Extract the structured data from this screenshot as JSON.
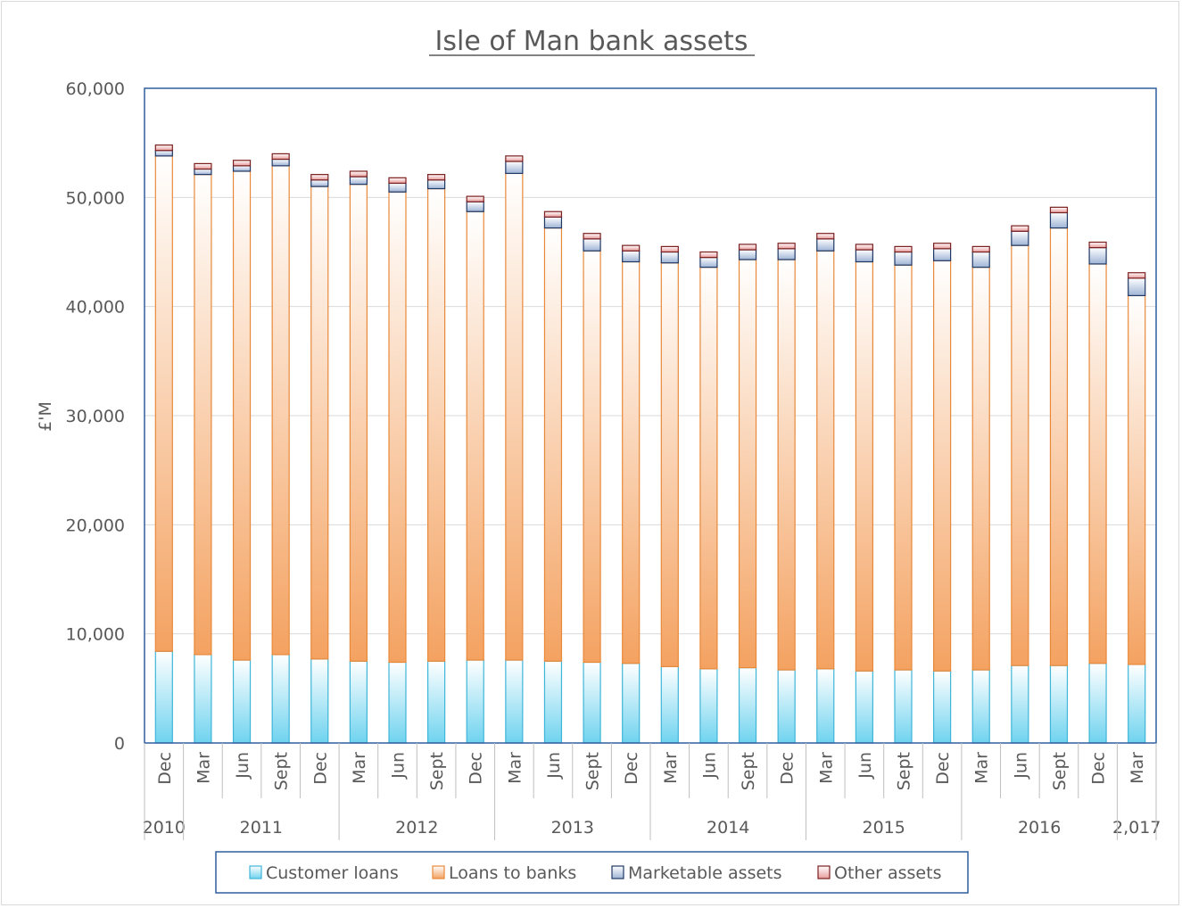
{
  "chart_data": {
    "type": "bar",
    "stacked": true,
    "title": "Isle of Man bank assets",
    "xlabel": "",
    "ylabel": "£'M",
    "ylim": [
      0,
      60000
    ],
    "y_ticks": [
      "0",
      "10,000",
      "20,000",
      "30,000",
      "40,000",
      "50,000",
      "60,000"
    ],
    "grid": true,
    "legend_position": "bottom",
    "categories": [
      "Dec",
      "Mar",
      "Jun",
      "Sept",
      "Dec",
      "Mar",
      "Jun",
      "Sept",
      "Dec",
      "Mar",
      "Jun",
      "Sept",
      "Dec",
      "Mar",
      "Jun",
      "Sept",
      "Dec",
      "Mar",
      "Jun",
      "Sept",
      "Dec",
      "Mar",
      "Jun",
      "Sept",
      "Dec",
      "Mar"
    ],
    "year_groups": [
      {
        "label": "2010",
        "count": 1
      },
      {
        "label": "2011",
        "count": 4
      },
      {
        "label": "2012",
        "count": 4
      },
      {
        "label": "2013",
        "count": 4
      },
      {
        "label": "2014",
        "count": 4
      },
      {
        "label": "2015",
        "count": 4
      },
      {
        "label": "2016",
        "count": 4
      },
      {
        "label": "2,017",
        "count": 1
      }
    ],
    "series": [
      {
        "name": "Customer loans",
        "color": "#6fd3ef",
        "values": [
          8400,
          8100,
          7600,
          8100,
          7700,
          7500,
          7400,
          7500,
          7600,
          7600,
          7500,
          7400,
          7300,
          7000,
          6800,
          6900,
          6700,
          6800,
          6600,
          6700,
          6600,
          6700,
          7100,
          7100,
          7300,
          7200
        ]
      },
      {
        "name": "Loans to banks",
        "color": "#f4a261",
        "values": [
          45400,
          44000,
          44800,
          44800,
          43300,
          43700,
          43100,
          43300,
          41100,
          44600,
          39700,
          37700,
          36800,
          37000,
          36800,
          37400,
          37600,
          38300,
          37500,
          37100,
          37600,
          36900,
          38500,
          40100,
          36600,
          33800
        ]
      },
      {
        "name": "Marketable assets",
        "color": "#9fb4d6",
        "values": [
          500,
          500,
          500,
          600,
          600,
          700,
          800,
          800,
          900,
          1100,
          1000,
          1100,
          1000,
          1000,
          900,
          900,
          1000,
          1100,
          1100,
          1200,
          1100,
          1400,
          1300,
          1400,
          1500,
          1600
        ]
      },
      {
        "name": "Other assets",
        "color": "#e89b9b",
        "values": [
          500,
          500,
          500,
          500,
          500,
          500,
          500,
          500,
          500,
          500,
          500,
          500,
          500,
          500,
          500,
          500,
          500,
          500,
          500,
          500,
          500,
          500,
          500,
          500,
          500,
          500
        ]
      }
    ]
  }
}
